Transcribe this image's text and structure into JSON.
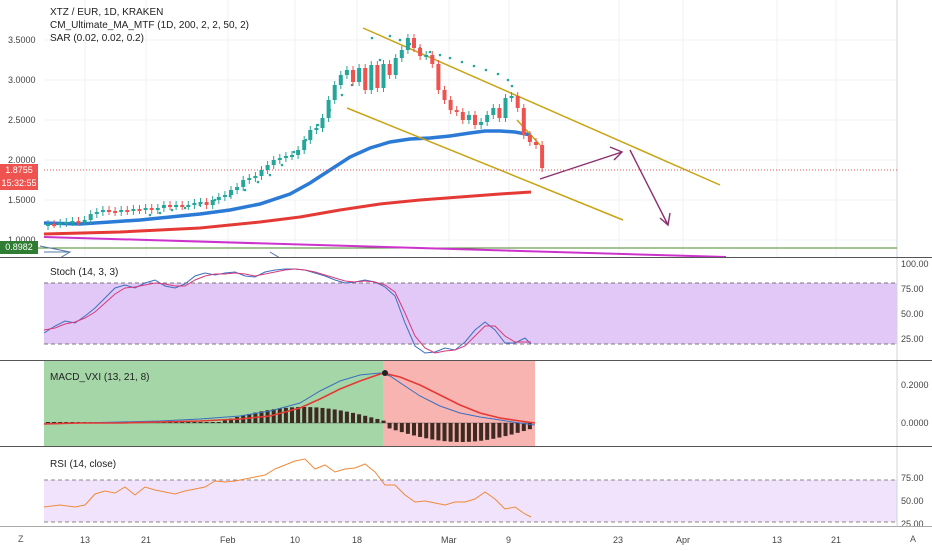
{
  "main": {
    "legend": [
      {
        "text": "XTZ / EUR, 1D, KRAKEN"
      },
      {
        "text": "CM_Ultimate_MA_MTF (1D, 200, 2, 2, 50, 2)"
      },
      {
        "text": "SAR (0.02, 0.02, 0.2)"
      }
    ],
    "y_ticks": [
      "3.5000",
      "3.0000",
      "2.5000",
      "2.0000",
      "1.5000",
      "1.0000"
    ],
    "price_tag_1": "1.8755",
    "price_tag_2": "15:32:55",
    "price_tag_3": "0.8982"
  },
  "stoch": {
    "title": "Stoch (14, 3, 3)",
    "y_ticks": [
      "100.00",
      "75.00",
      "50.00",
      "25.00"
    ]
  },
  "macd": {
    "title": "MACD_VXI (13, 21, 8)",
    "y_ticks": [
      "0.2000",
      "0.0000"
    ]
  },
  "rsi": {
    "title": "RSI (14, close)",
    "y_ticks": [
      "75.00",
      "50.00",
      "25.00"
    ]
  },
  "x_ticks": [
    "13",
    "21",
    "Feb",
    "10",
    "18",
    "Mar",
    "9",
    "23",
    "Apr",
    "13",
    "21"
  ],
  "corner_left": "Z",
  "corner_right": "A",
  "colors": {
    "up": "#26a69a",
    "down": "#ef5350",
    "ma_fast": "#2b7bd6",
    "ma_slow": "#e53935",
    "channel": "#c8a415",
    "arrow": "#8a2f6e",
    "magenta": "#cc33cc",
    "stoch_zone": "#e2c8f7",
    "macd_green": "#a5d6a7",
    "macd_red": "#f8b4b0",
    "rsi_zone": "#f0e3fb",
    "rsi_line": "#f08a3a"
  }
}
